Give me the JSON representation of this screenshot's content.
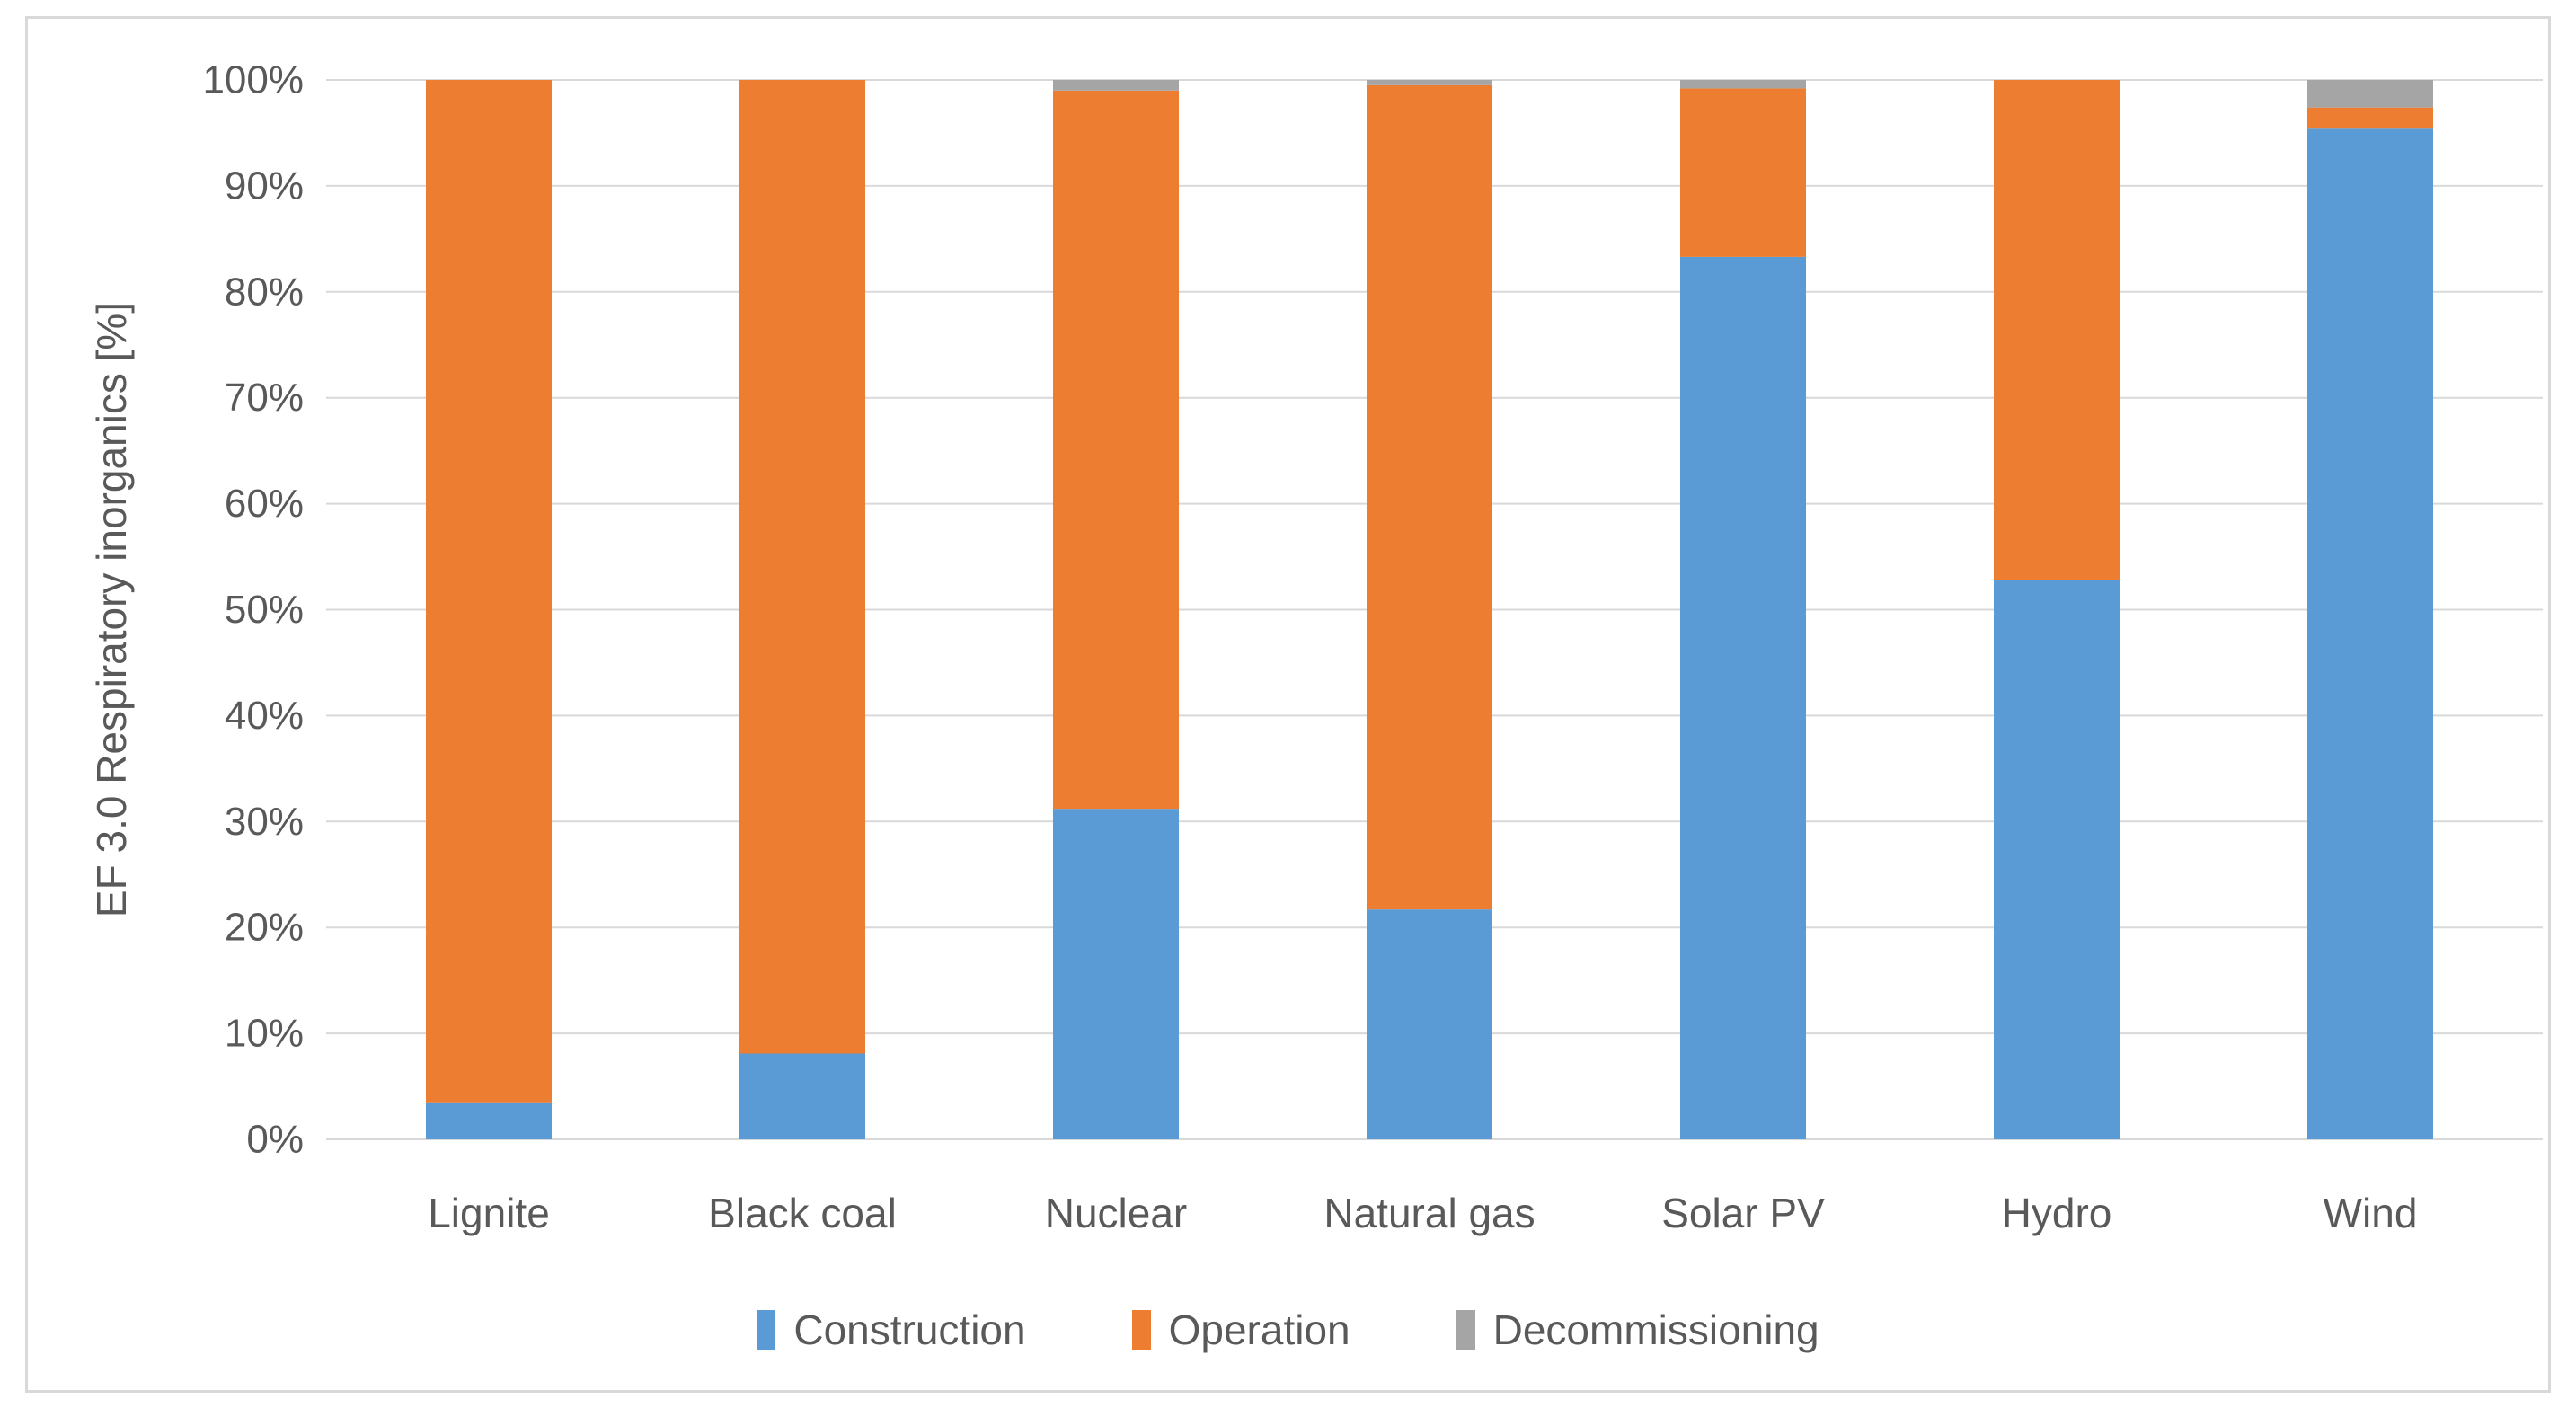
{
  "figure": {
    "background_color": "#FFFFFF",
    "border_color": "#D9D9D9"
  },
  "chart_data": {
    "type": "bar",
    "subtype": "stacked-100-percent",
    "title": "",
    "xlabel": "",
    "ylabel": "EF 3.0 Respiratory inorganics [%]",
    "categories": [
      "Lignite",
      "Black coal",
      "Nuclear",
      "Natural gas",
      "Solar PV",
      "Hydro",
      "Wind"
    ],
    "series": [
      {
        "name": "Construction",
        "color": "#5B9BD5",
        "values": [
          3.5,
          8.1,
          31.2,
          21.7,
          83.3,
          52.8,
          95.4
        ]
      },
      {
        "name": "Operation",
        "color": "#ED7D31",
        "values": [
          96.5,
          91.9,
          67.8,
          77.8,
          15.9,
          47.2,
          2.0
        ]
      },
      {
        "name": "Decommissioning",
        "color": "#A5A5A5",
        "values": [
          0.0,
          0.0,
          1.0,
          0.5,
          0.8,
          0.0,
          2.6
        ]
      }
    ],
    "stack_order_bottom_to_top": [
      "Construction",
      "Operation",
      "Decommissioning"
    ],
    "ylim": [
      0,
      100
    ],
    "ytick_step": 10,
    "ytick_labels": [
      "0%",
      "10%",
      "20%",
      "30%",
      "40%",
      "50%",
      "60%",
      "70%",
      "80%",
      "90%",
      "100%"
    ],
    "grid": "horizontal",
    "grid_color": "#D9D9D9",
    "text_color": "#595959",
    "legend_position": "bottom"
  }
}
